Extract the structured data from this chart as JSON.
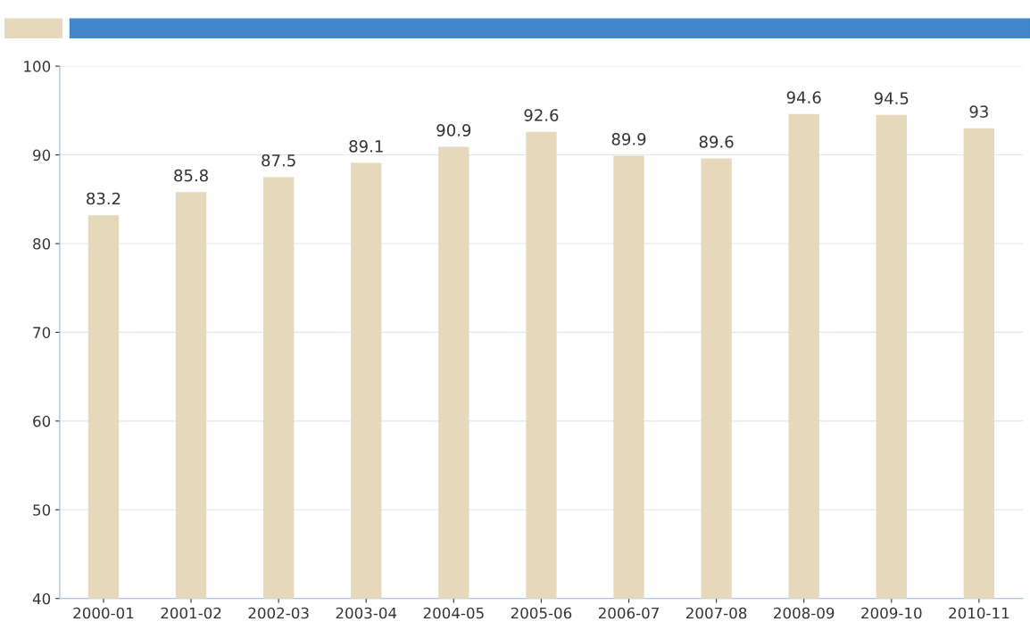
{
  "chart_data": {
    "type": "bar",
    "categories": [
      "2000-01",
      "2001-02",
      "2002-03",
      "2003-04",
      "2004-05",
      "2005-06",
      "2006-07",
      "2007-08",
      "2008-09",
      "2009-10",
      "2010-11"
    ],
    "values": [
      83.2,
      85.8,
      87.5,
      89.1,
      90.9,
      92.6,
      89.9,
      89.6,
      94.6,
      94.5,
      93
    ],
    "color": "#e6d9bb",
    "ylim": [
      40,
      100
    ],
    "yticks": [
      40,
      50,
      60,
      70,
      80,
      90,
      100
    ],
    "grid": "y",
    "data_labels": true
  }
}
